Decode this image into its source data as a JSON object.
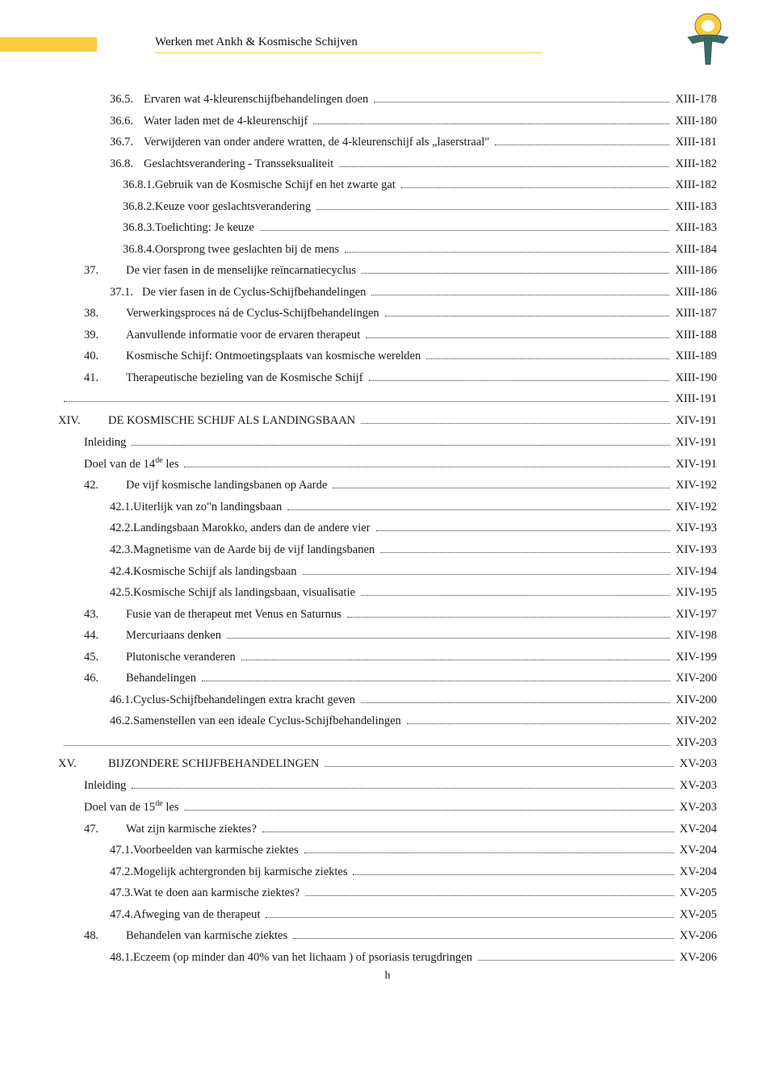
{
  "header": {
    "title": "Werken met  Ankh & Kosmische Schijven"
  },
  "footer": {
    "label": "h"
  },
  "entries": [
    {
      "indent": 2,
      "numClass": "w-num36",
      "num": "36.5.",
      "text": "Ervaren wat 4-kleurenschijfbehandelingen doen",
      "page": "XIII-178"
    },
    {
      "indent": 2,
      "numClass": "w-num36",
      "num": "36.6.",
      "text": "Water laden met de 4-kleurenschijf",
      "page": "XIII-180"
    },
    {
      "indent": 2,
      "numClass": "w-num36",
      "num": "36.7.",
      "text": "Verwijderen van onder andere wratten, de 4-kleurenschijf als „laserstraal\"",
      "page": "XIII-181"
    },
    {
      "indent": 2,
      "numClass": "w-num36",
      "num": "36.8.",
      "text": "Geslachtsverandering - Transseksualiteit",
      "page": "XIII-182"
    },
    {
      "indent": 3,
      "numClass": "",
      "num": "36.8.1. ",
      "text": "Gebruik van de Kosmische Schijf en het zwarte gat",
      "page": "XIII-182"
    },
    {
      "indent": 3,
      "numClass": "",
      "num": "36.8.2. ",
      "text": "Keuze voor geslachtsverandering",
      "page": "XIII-183"
    },
    {
      "indent": 3,
      "numClass": "",
      "num": "36.8.3. ",
      "text": "Toelichting: Je keuze",
      "page": "XIII-183"
    },
    {
      "indent": 3,
      "numClass": "",
      "num": "36.8.4. ",
      "text": "Oorsprong twee geslachten bij de mens",
      "page": "XIII-184"
    },
    {
      "indent": 1,
      "numClass": "w-num2",
      "num": "37.",
      "textPad": true,
      "text": "De vier fasen in de menselijke reïncarnatiecyclus",
      "page": "XIII-186"
    },
    {
      "indent": 2,
      "numClass": "w-sub",
      "num": "37.1.",
      "text": "De vier fasen in de Cyclus-Schijfbehandelingen",
      "page": "XIII-186"
    },
    {
      "indent": 1,
      "numClass": "w-num2",
      "num": "38.",
      "textPad": true,
      "text": "Verwerkingsproces ná de Cyclus-Schijfbehandelingen",
      "page": "XIII-187"
    },
    {
      "indent": 1,
      "numClass": "w-num2",
      "num": "39.",
      "textPad": true,
      "text": "Aanvullende informatie voor de ervaren therapeut",
      "page": "XIII-188"
    },
    {
      "indent": 1,
      "numClass": "w-num2",
      "num": "40.",
      "textPad": true,
      "text": "Kosmische Schijf: Ontmoetingsplaats van kosmische werelden",
      "page": "XIII-189"
    },
    {
      "indent": 1,
      "numClass": "w-num2",
      "num": "41.",
      "textPad": true,
      "text": "Therapeutische bezieling van de Kosmische Schijf",
      "page": "XIII-190"
    },
    {
      "indent": 0,
      "numClass": "",
      "num": "",
      "text": "",
      "page": "XIII-191"
    },
    {
      "indent": 0,
      "numClass": "w-roman",
      "num": "XIV.",
      "textPad": true,
      "text": "DE KOSMISCHE SCHIJF ALS LANDINGSBAAN",
      "page": "XIV-191"
    },
    {
      "indent": 1,
      "numClass": "",
      "num": "",
      "text": "Inleiding",
      "page": "XIV-191"
    },
    {
      "indent": 1,
      "numClass": "",
      "num": "",
      "text": "Doel van de 14<sup>de</sup>  les",
      "html": true,
      "page": "XIV-191"
    },
    {
      "indent": 1,
      "numClass": "w-num2",
      "num": "42.",
      "textPad": true,
      "text": "De vijf kosmische landingsbanen op Aarde",
      "page": "XIV-192"
    },
    {
      "indent": 2,
      "numClass": "",
      "num": "42.1. ",
      "text": "Uiterlijk  van  zo\"n  landingsbaan",
      "page": "XIV-192"
    },
    {
      "indent": 2,
      "numClass": "",
      "num": "42.2. ",
      "text": "Landingsbaan Marokko, anders dan de andere vier",
      "page": "XIV-193"
    },
    {
      "indent": 2,
      "numClass": "",
      "num": "42.3. ",
      "text": "Magnetisme van de Aarde bij de vijf landingsbanen",
      "page": "XIV-193"
    },
    {
      "indent": 2,
      "numClass": "",
      "num": "42.4. ",
      "text": "Kosmische Schijf als landingsbaan",
      "page": "XIV-194"
    },
    {
      "indent": 2,
      "numClass": "",
      "num": "42.5. ",
      "text": "Kosmische Schijf als landingsbaan, visualisatie",
      "page": "XIV-195"
    },
    {
      "indent": 1,
      "numClass": "w-num2",
      "num": "43.",
      "textPad": true,
      "text": "Fusie van de therapeut met Venus en Saturnus",
      "page": "XIV-197"
    },
    {
      "indent": 1,
      "numClass": "w-num2",
      "num": "44.",
      "textPad": true,
      "text": "Mercuriaans denken",
      "page": "XIV-198"
    },
    {
      "indent": 1,
      "numClass": "w-num2",
      "num": "45.",
      "textPad": true,
      "text": "Plutonische veranderen",
      "page": "XIV-199"
    },
    {
      "indent": 1,
      "numClass": "w-num2",
      "num": "46.",
      "textPad": true,
      "text": "Behandelingen",
      "page": "XIV-200"
    },
    {
      "indent": 2,
      "numClass": "",
      "num": "46.1. ",
      "text": "Cyclus-Schijfbehandelingen extra kracht geven",
      "page": "XIV-200"
    },
    {
      "indent": 2,
      "numClass": "",
      "num": "46.2. ",
      "text": "Samenstellen van een ideale Cyclus-Schijfbehandelingen",
      "page": "XIV-202"
    },
    {
      "indent": 0,
      "numClass": "",
      "num": "",
      "text": "",
      "page": "XIV-203"
    },
    {
      "indent": 0,
      "numClass": "w-roman",
      "num": "XV.",
      "textPad": true,
      "text": "BIJZONDERE SCHIJFBEHANDELINGEN",
      "page": "XV-203"
    },
    {
      "indent": 1,
      "numClass": "",
      "num": "",
      "text": "Inleiding",
      "page": "XV-203"
    },
    {
      "indent": 1,
      "numClass": "",
      "num": "",
      "text": "Doel van de 15<sup>de</sup>  les",
      "html": true,
      "page": "XV-203"
    },
    {
      "indent": 1,
      "numClass": "w-num2",
      "num": "47.",
      "textPad": true,
      "text": "Wat zijn karmische ziektes?",
      "page": "XV-204"
    },
    {
      "indent": 2,
      "numClass": "",
      "num": "47.1. ",
      "text": "Voorbeelden van karmische ziektes",
      "page": "XV-204"
    },
    {
      "indent": 2,
      "numClass": "",
      "num": "47.2. ",
      "text": "Mogelijk achtergronden bij karmische ziektes",
      "page": "XV-204"
    },
    {
      "indent": 2,
      "numClass": "",
      "num": "47.3. ",
      "text": "Wat te doen aan karmische ziektes?",
      "page": "XV-205"
    },
    {
      "indent": 2,
      "numClass": "",
      "num": "47.4. ",
      "text": "Afweging van de therapeut",
      "page": "XV-205"
    },
    {
      "indent": 1,
      "numClass": "w-num2",
      "num": "48.",
      "textPad": true,
      "text": "Behandelen van karmische ziektes",
      "page": "XV-206"
    },
    {
      "indent": 2,
      "numClass": "",
      "num": "48.1. ",
      "text": "Eczeem (op minder dan 40% van het lichaam ) of psoriasis terugdringen",
      "page": "XV-206"
    }
  ]
}
